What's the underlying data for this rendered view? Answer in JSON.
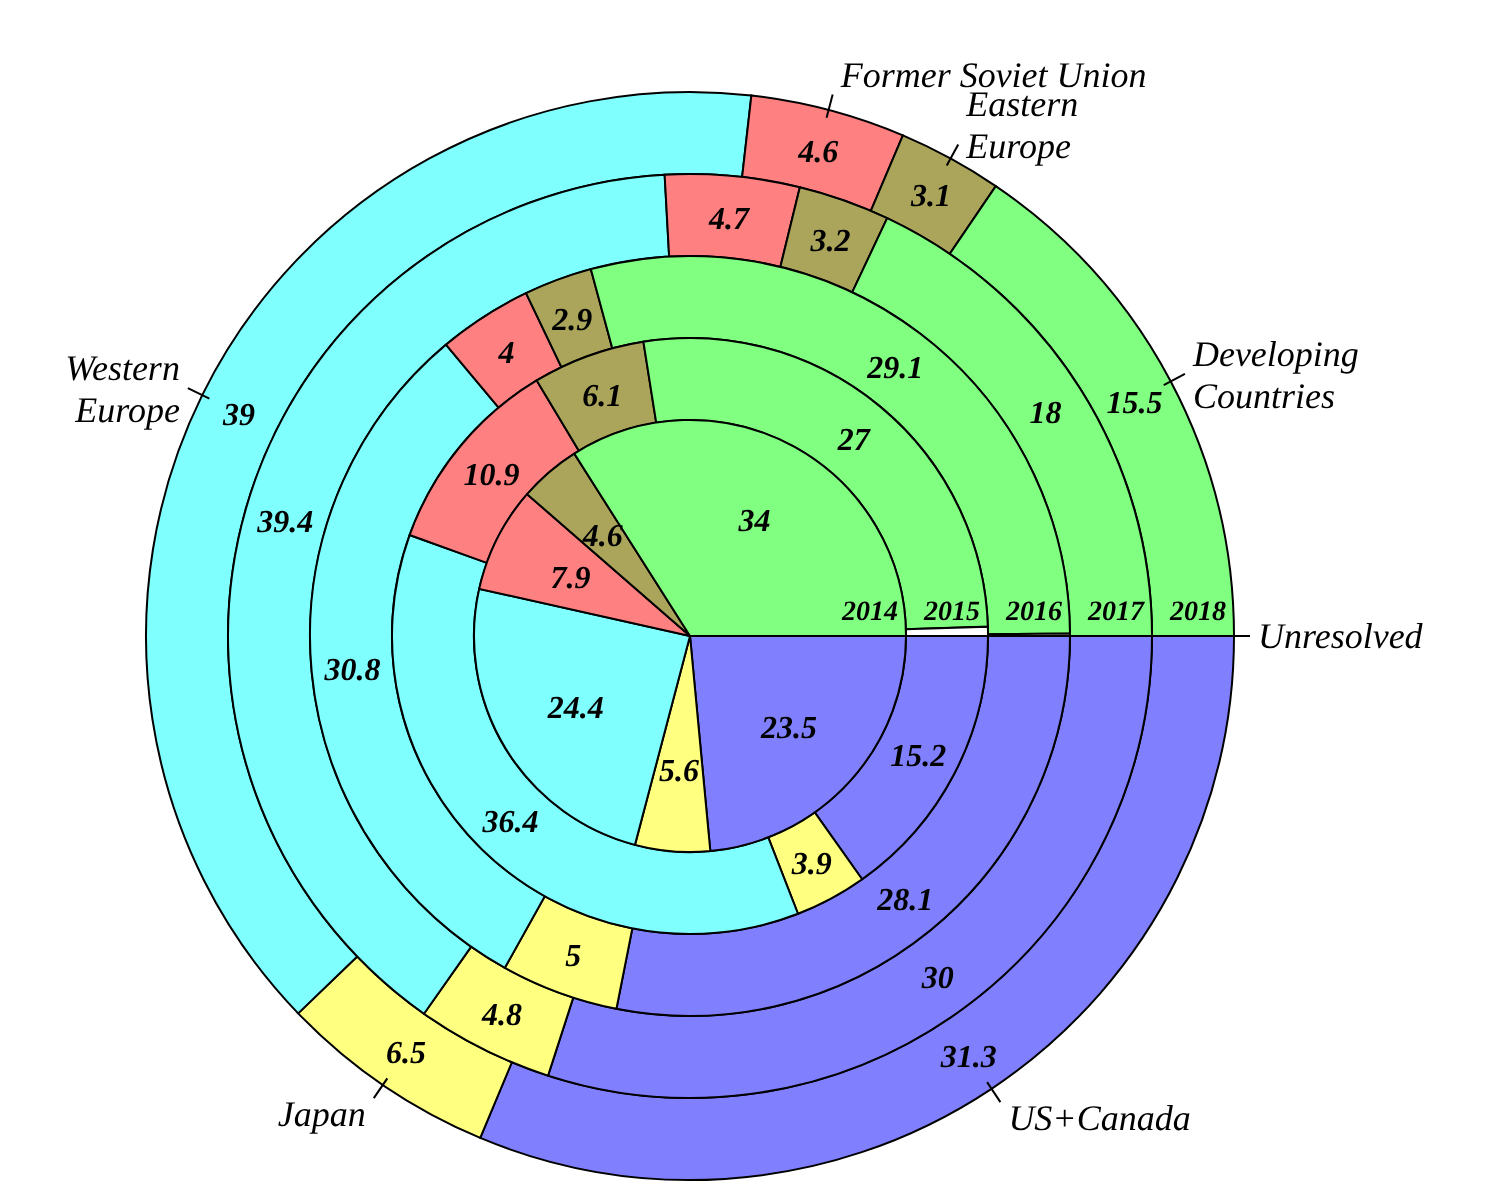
{
  "chart_data": {
    "type": "donut",
    "categories": [
      "US+Canada",
      "Japan",
      "Western Europe",
      "Former Soviet Union",
      "Eastern Europe",
      "Developing Countries",
      "Unresolved"
    ],
    "colors": [
      "#8080ff",
      "#ffff80",
      "#80ffff",
      "#ff8080",
      "#aaa55a",
      "#80ff80",
      "#ffffff"
    ],
    "series": [
      {
        "name": "2018",
        "values": [
          31.3,
          6.5,
          39,
          4.6,
          3.1,
          15.5,
          0
        ],
        "value_labels": [
          "31.3",
          "6.5",
          "39",
          "4.6",
          "3.1",
          "15.5",
          null
        ]
      },
      {
        "name": "2017",
        "values": [
          30,
          4.8,
          39.4,
          4.7,
          3.2,
          18,
          0
        ],
        "value_labels": [
          "30",
          "4.8",
          "39.4",
          "4.7",
          "3.2",
          "18",
          null
        ]
      },
      {
        "name": "2016",
        "values": [
          28.1,
          5,
          30.8,
          4,
          2.9,
          29.1,
          0.1
        ],
        "value_labels": [
          "28.1",
          "5",
          "30.8",
          "4",
          "2.9",
          "29.1",
          null
        ]
      },
      {
        "name": "2015",
        "values": [
          15.2,
          3.9,
          36.4,
          10.9,
          6.1,
          27,
          0.5
        ],
        "value_labels": [
          "15.2",
          "3.9",
          "36.4",
          "10.9",
          "6.1",
          "27",
          null
        ]
      },
      {
        "name": "2014",
        "values": [
          23.5,
          5.6,
          24.4,
          7.9,
          4.6,
          34,
          0
        ],
        "value_labels": [
          "23.5",
          "5.6",
          "24.4",
          "7.9",
          "4.6",
          "34",
          null
        ]
      }
    ]
  }
}
